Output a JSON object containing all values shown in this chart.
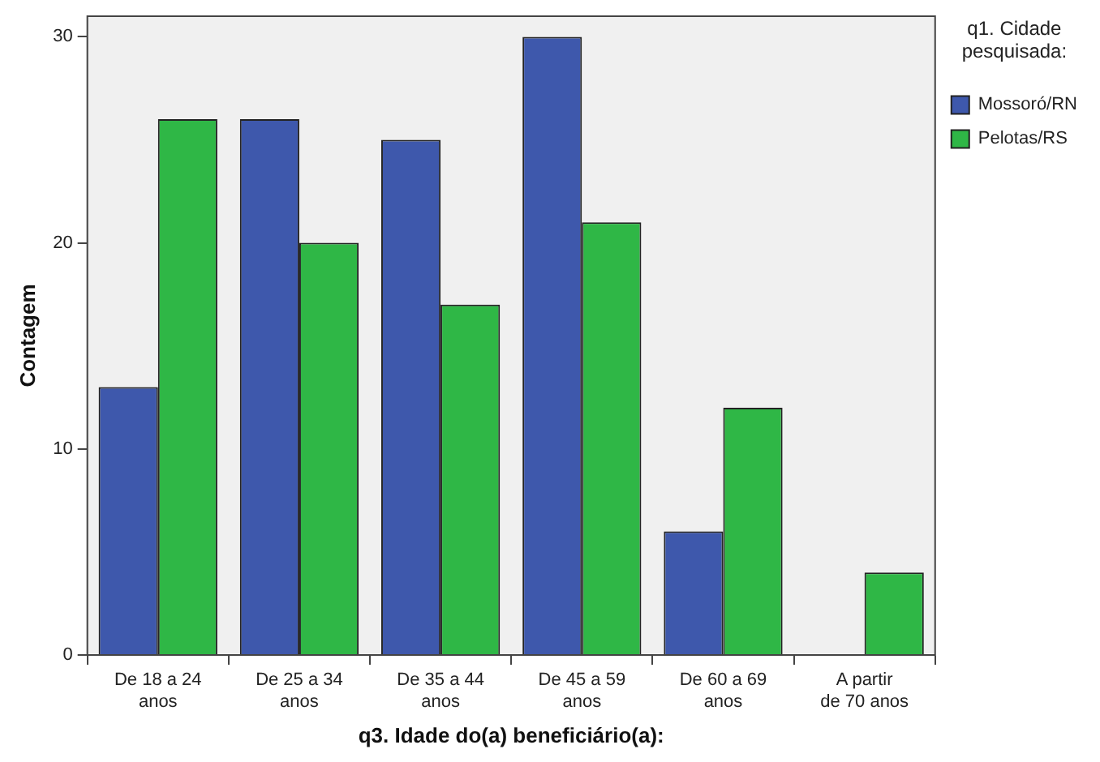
{
  "chart_data": {
    "type": "bar",
    "xlabel": "q3. Idade do(a) beneficiário(a):",
    "ylabel": "Contagem",
    "legend_title": "q1. Cidade pesquisada:",
    "categories": [
      "De 18 a 24 anos",
      "De 25 a 34 anos",
      "De 35 a 44 anos",
      "De 45 a 59 anos",
      "De 60 a 69 anos",
      "A partir de 70 anos"
    ],
    "series": [
      {
        "name": "Mossoró/RN",
        "color": "#3e58ac",
        "values": [
          13,
          26,
          25,
          30,
          6,
          null
        ]
      },
      {
        "name": "Pelotas/RS",
        "color": "#2fb746",
        "values": [
          26,
          20,
          17,
          21,
          12,
          4
        ]
      }
    ],
    "ylim": [
      0,
      31
    ],
    "yticks": [
      0,
      10,
      20,
      30
    ],
    "grid": false,
    "legend": "right"
  }
}
